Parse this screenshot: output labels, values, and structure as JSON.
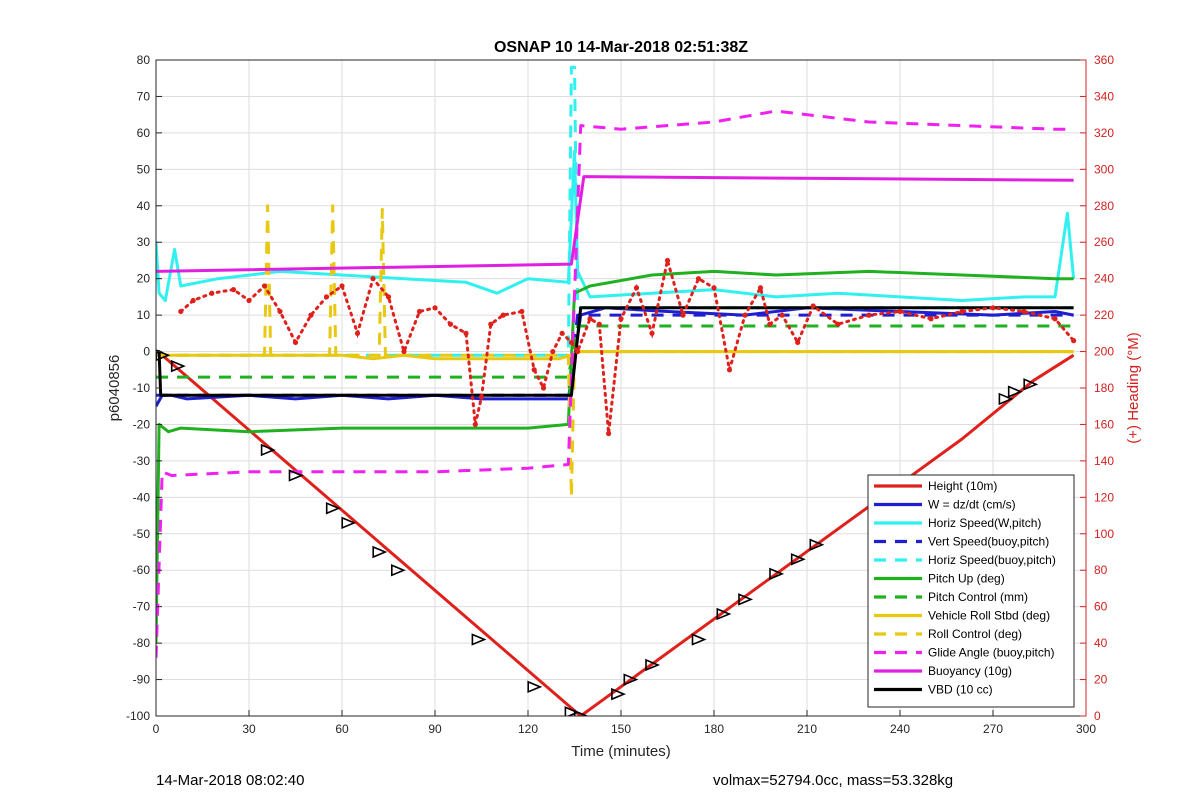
{
  "footer": {
    "timestamp": "14-Mar-2018 08:02:40",
    "info": "volmax=52794.0cc, mass=53.328kg"
  },
  "chart_data": {
    "type": "line",
    "title": "OSNAP 10 14-Mar-2018 02:51:38Z",
    "xlabel": "Time (minutes)",
    "ylabel_left": "p6040856",
    "ylabel_right": "(+) Heading (°M)",
    "xlim": [
      0,
      300
    ],
    "ylim_left": [
      -100,
      80
    ],
    "ylim_right": [
      0,
      360
    ],
    "x_ticks": [
      0,
      30,
      60,
      90,
      120,
      150,
      180,
      210,
      240,
      270,
      300
    ],
    "y_ticks_left": [
      80,
      70,
      60,
      50,
      40,
      30,
      20,
      10,
      0,
      -10,
      -20,
      -30,
      -40,
      -50,
      -60,
      -70,
      -80,
      -90,
      -100
    ],
    "y_ticks_right": [
      360,
      340,
      320,
      300,
      280,
      260,
      240,
      220,
      200,
      180,
      160,
      140,
      120,
      100,
      80,
      60,
      40,
      20,
      0
    ],
    "grid": true,
    "legend_position": "bottom-right",
    "colors": {
      "height": "#e0201b",
      "w": "#1f1fd0",
      "horiz": "#30f0f0",
      "pitch": "#20b020",
      "roll": "#e8c810",
      "glide": "#f020f0",
      "buoyancy": "#e020e0",
      "vbd": "#000000",
      "heading": "#e0201b",
      "right_axis": "#d62020"
    },
    "series": [
      {
        "name": "Height (10m)",
        "key": "height",
        "style": "solid",
        "x": [
          0,
          2,
          137,
          213,
          260,
          283,
          296
        ],
        "y": [
          0,
          -1,
          -100,
          -53,
          -24,
          -8,
          -1
        ]
      },
      {
        "name": "W = dz/dt (cm/s)",
        "key": "w",
        "style": "solid",
        "x": [
          0,
          2,
          5,
          10,
          30,
          45,
          60,
          75,
          90,
          105,
          120,
          133,
          135,
          137,
          145,
          165,
          190,
          210,
          240,
          270,
          290,
          296
        ],
        "y": [
          -15,
          -12,
          -12,
          -13,
          -12,
          -13,
          -12,
          -13,
          -12,
          -13,
          -13,
          -13,
          -2,
          10,
          12,
          11,
          10,
          12,
          11,
          10,
          11,
          10
        ]
      },
      {
        "name": "Horiz Speed(W,pitch)",
        "key": "horiz",
        "style": "solid",
        "x": [
          0,
          1,
          3,
          6,
          8,
          20,
          40,
          60,
          80,
          100,
          110,
          120,
          133,
          135,
          136,
          140,
          160,
          180,
          200,
          220,
          240,
          260,
          280,
          290,
          294,
          296
        ],
        "y": [
          30,
          16,
          14,
          28,
          18,
          20,
          22,
          21,
          20,
          19,
          16,
          20,
          19,
          55,
          22,
          15,
          16,
          17,
          15,
          16,
          15,
          14,
          15,
          15,
          38,
          20
        ]
      },
      {
        "name": "Vert Speed(buoy,pitch)",
        "key": "w",
        "style": "dashed",
        "x": [
          0,
          133,
          136,
          296
        ],
        "y": [
          -12,
          -12,
          10,
          10
        ]
      },
      {
        "name": "Horiz Speed(buoy,pitch)",
        "key": "horiz",
        "style": "dashed",
        "x": [
          0,
          133,
          134,
          135,
          136,
          296
        ],
        "y": [
          -1,
          -1,
          78,
          78,
          12,
          12
        ]
      },
      {
        "name": "Pitch Up (deg)",
        "key": "pitch",
        "style": "solid",
        "x": [
          0,
          1,
          4,
          8,
          30,
          60,
          90,
          120,
          133,
          135,
          140,
          160,
          180,
          200,
          230,
          260,
          290,
          296
        ],
        "y": [
          -80,
          -20,
          -22,
          -21,
          -22,
          -21,
          -21,
          -21,
          -20,
          16,
          18,
          21,
          22,
          21,
          22,
          21,
          20,
          20
        ]
      },
      {
        "name": "Pitch Control (mm)",
        "key": "pitch",
        "style": "dashed",
        "x": [
          0,
          133,
          136,
          296
        ],
        "y": [
          -7,
          -7,
          7,
          7
        ]
      },
      {
        "name": "Vehicle Roll Stbd (deg)",
        "key": "roll",
        "style": "solid",
        "x": [
          0,
          10,
          20,
          30,
          40,
          50,
          60,
          70,
          80,
          90,
          100,
          110,
          120,
          130,
          134,
          136,
          150,
          170,
          190,
          210,
          240,
          270,
          290,
          296
        ],
        "y": [
          -1,
          -1,
          -1,
          -1,
          -1,
          -1,
          -1,
          -2,
          -1,
          -2,
          -2,
          -2,
          -2,
          -2,
          -1,
          0,
          0,
          0,
          0,
          0,
          0,
          0,
          0,
          0
        ]
      },
      {
        "name": "Roll Control (deg)",
        "key": "roll",
        "style": "dashed",
        "x": [
          0,
          35,
          36,
          37,
          56,
          57,
          58,
          72,
          73,
          74,
          133,
          134,
          135,
          296
        ],
        "y": [
          -1,
          -1,
          40,
          -1,
          -1,
          40,
          -1,
          -1,
          39,
          -1,
          -1,
          -40,
          0,
          0
        ]
      },
      {
        "name": "Glide Angle (buoy,pitch)",
        "key": "glide",
        "style": "dashed",
        "x": [
          0,
          2,
          5,
          30,
          60,
          90,
          120,
          133,
          137,
          150,
          180,
          200,
          230,
          260,
          290,
          296
        ],
        "y": [
          -84,
          -33,
          -34,
          -33,
          -33,
          -33,
          -32,
          -31,
          62,
          61,
          63,
          66,
          63,
          62,
          61,
          61
        ]
      },
      {
        "name": "Buoyancy (10g)",
        "key": "buoyancy",
        "style": "solid",
        "x": [
          0,
          134,
          138,
          296
        ],
        "y": [
          22,
          24,
          48,
          47
        ]
      },
      {
        "name": "VBD (10 cc)",
        "key": "vbd",
        "style": "solid",
        "x": [
          0,
          1,
          1.5,
          134,
          137,
          296
        ],
        "y": [
          0,
          0,
          -12,
          -12,
          12,
          12
        ]
      },
      {
        "name": "",
        "key": "heading",
        "style": "dotted",
        "axis": "right",
        "x": [
          8,
          12,
          18,
          25,
          30,
          35,
          40,
          45,
          50,
          55,
          60,
          65,
          70,
          75,
          80,
          85,
          90,
          95,
          100,
          103,
          105,
          108,
          112,
          118,
          122,
          125,
          128,
          131,
          134,
          136,
          140,
          143,
          146,
          150,
          155,
          160,
          165,
          170,
          175,
          180,
          185,
          190,
          195,
          198,
          202,
          207,
          212,
          220,
          230,
          240,
          250,
          260,
          270,
          280,
          290,
          296
        ],
        "y": [
          222,
          228,
          232,
          234,
          228,
          236,
          222,
          205,
          220,
          230,
          236,
          210,
          240,
          230,
          200,
          222,
          224,
          215,
          210,
          160,
          175,
          215,
          220,
          222,
          190,
          180,
          200,
          210,
          205,
          200,
          218,
          215,
          155,
          218,
          235,
          210,
          250,
          220,
          240,
          235,
          190,
          220,
          235,
          215,
          220,
          205,
          225,
          215,
          220,
          222,
          218,
          222,
          224,
          222,
          218,
          206
        ]
      },
      {
        "name": "",
        "key": "vbd",
        "style": "markers",
        "x": [
          2,
          7,
          36,
          45,
          57,
          62,
          72,
          78,
          104,
          122,
          134,
          137,
          149,
          153,
          160,
          175,
          183,
          190,
          200,
          207,
          213,
          274,
          277,
          282
        ],
        "y": [
          -1,
          -4,
          -27,
          -34,
          -43,
          -47,
          -55,
          -60,
          -79,
          -92,
          -99,
          -100,
          -94,
          -90,
          -86,
          -79,
          -72,
          -68,
          -61,
          -57,
          -53,
          -13,
          -11,
          -9
        ]
      }
    ]
  }
}
